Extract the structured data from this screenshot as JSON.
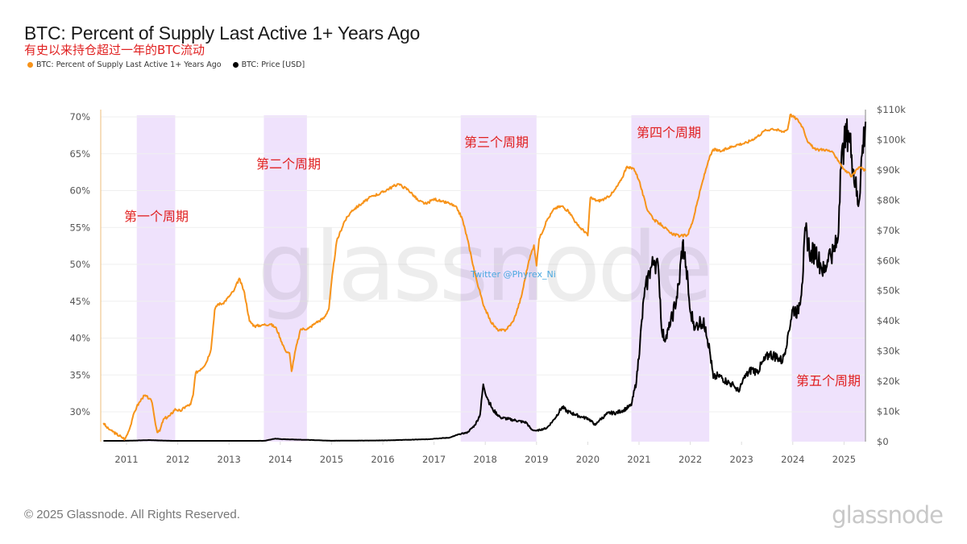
{
  "header": {
    "title": "BTC: Percent of Supply Last Active 1+ Years Ago",
    "subtitle": "有史以来持仓超过一年的BTC流动"
  },
  "footer": {
    "copyright": "© 2025 Glassnode. All Rights Reserved.",
    "logo_text": "glassnode"
  },
  "watermark": "glassnode",
  "credit": "Twitter @Phyrex_Ni",
  "colors": {
    "supply": "#f7931a",
    "price": "#000000",
    "band": "#efe2fc",
    "annotation": "#e02020",
    "credit": "#4aa8e0"
  },
  "chart_data": {
    "type": "line",
    "title": "BTC: Percent of Supply Last Active 1+ Years Ago",
    "xlabel": "",
    "ylabel_left": "",
    "ylabel_right": "",
    "x_range": [
      2010.55,
      2025.45
    ],
    "y_left_range": [
      25.6,
      70.5
    ],
    "y_right_range": [
      0,
      110
    ],
    "grid": true,
    "legend_position": "top-left",
    "x_ticks": [
      "2011",
      "2012",
      "2013",
      "2014",
      "2015",
      "2016",
      "2017",
      "2018",
      "2019",
      "2020",
      "2021",
      "2022",
      "2023",
      "2024",
      "2025"
    ],
    "y_left_ticks": [
      "30%",
      "35%",
      "40%",
      "45%",
      "50%",
      "55%",
      "60%",
      "65%",
      "70%"
    ],
    "y_left_tick_values": [
      30,
      35,
      40,
      45,
      50,
      55,
      60,
      65,
      70
    ],
    "y_right_ticks": [
      "$0",
      "$10k",
      "$20k",
      "$30k",
      "$40k",
      "$50k",
      "$60k",
      "$70k",
      "$80k",
      "$90k",
      "$100k",
      "$110k"
    ],
    "y_right_tick_values": [
      0,
      10,
      20,
      30,
      40,
      50,
      60,
      70,
      80,
      90,
      100,
      110
    ],
    "series": [
      {
        "name": "BTC: Percent of Supply Last Active 1+ Years Ago",
        "axis": "left",
        "unit": "%",
        "x": [
          2010.55,
          2010.62,
          2010.7,
          2010.8,
          2010.9,
          2010.97,
          2011.05,
          2011.12,
          2011.2,
          2011.3,
          2011.35,
          2011.45,
          2011.5,
          2011.55,
          2011.6,
          2011.65,
          2011.72,
          2011.85,
          2011.95,
          2012.05,
          2012.15,
          2012.25,
          2012.3,
          2012.35,
          2012.45,
          2012.55,
          2012.65,
          2012.72,
          2012.78,
          2012.88,
          2013.0,
          2013.1,
          2013.2,
          2013.3,
          2013.4,
          2013.5,
          2013.65,
          2013.8,
          2013.92,
          2014.0,
          2014.1,
          2014.18,
          2014.22,
          2014.3,
          2014.4,
          2014.55,
          2014.7,
          2014.85,
          2014.95,
          2015.0,
          2015.1,
          2015.25,
          2015.4,
          2015.6,
          2015.8,
          2015.95,
          2016.1,
          2016.3,
          2016.5,
          2016.7,
          2016.85,
          2017.0,
          2017.15,
          2017.3,
          2017.45,
          2017.55,
          2017.65,
          2017.8,
          2017.95,
          2018.1,
          2018.25,
          2018.4,
          2018.55,
          2018.7,
          2018.85,
          2018.95,
          2019.0,
          2019.05,
          2019.2,
          2019.35,
          2019.5,
          2019.65,
          2019.8,
          2019.95,
          2020.0,
          2020.05,
          2020.2,
          2020.35,
          2020.5,
          2020.65,
          2020.75,
          2020.9,
          2021.0,
          2021.15,
          2021.3,
          2021.45,
          2021.6,
          2021.8,
          2021.95,
          2022.05,
          2022.2,
          2022.35,
          2022.45,
          2022.6,
          2022.75,
          2022.9,
          2023.1,
          2023.3,
          2023.45,
          2023.6,
          2023.8,
          2023.9,
          2023.95,
          2024.1,
          2024.2,
          2024.3,
          2024.45,
          2024.6,
          2024.75,
          2024.85,
          2025.0,
          2025.15,
          2025.3,
          2025.42
        ],
        "y": [
          28.5,
          27.8,
          27.5,
          27.0,
          26.6,
          26.3,
          27.5,
          29.2,
          30.7,
          31.8,
          32.2,
          31.8,
          31.2,
          29.0,
          27.2,
          27.4,
          29.0,
          29.5,
          30.4,
          30.1,
          30.7,
          31.0,
          32.3,
          35.3,
          35.8,
          36.6,
          38.5,
          43.8,
          44.6,
          44.7,
          45.6,
          46.5,
          48.1,
          46.2,
          42.3,
          41.6,
          41.8,
          41.9,
          41.4,
          40.0,
          38.3,
          38.0,
          35.5,
          38.5,
          41.2,
          41.3,
          42.1,
          42.7,
          44.0,
          47.6,
          53.1,
          55.8,
          57.3,
          58.3,
          59.3,
          59.6,
          60.2,
          60.9,
          60.1,
          58.6,
          58.2,
          58.9,
          58.5,
          58.3,
          57.6,
          56.2,
          53.5,
          48.7,
          44.8,
          42.3,
          41.0,
          41.1,
          42.3,
          45.5,
          50.5,
          52.6,
          49.8,
          53.4,
          55.9,
          57.6,
          57.9,
          57.0,
          55.3,
          54.4,
          53.9,
          59.0,
          58.6,
          58.9,
          59.8,
          61.4,
          63.1,
          63.0,
          61.4,
          57.6,
          56.0,
          55.3,
          54.3,
          53.8,
          54.0,
          55.9,
          60.2,
          64.0,
          65.6,
          65.3,
          65.8,
          66.2,
          66.5,
          67.3,
          68.1,
          68.4,
          68.0,
          68.3,
          70.3,
          69.6,
          68.5,
          66.5,
          65.5,
          65.6,
          65.3,
          64.5,
          62.9,
          61.9,
          63.2,
          62.7
        ]
      },
      {
        "name": "BTC: Price [USD]",
        "axis": "right",
        "unit": "USD thousands",
        "x": [
          2010.55,
          2011.0,
          2011.45,
          2012.0,
          2013.0,
          2013.3,
          2013.7,
          2013.9,
          2014.05,
          2014.5,
          2015.0,
          2016.0,
          2016.9,
          2017.0,
          2017.3,
          2017.5,
          2017.65,
          2017.8,
          2017.9,
          2017.96,
          2018.05,
          2018.15,
          2018.3,
          2018.45,
          2018.6,
          2018.8,
          2018.9,
          2019.0,
          2019.2,
          2019.35,
          2019.5,
          2019.6,
          2019.75,
          2019.9,
          2020.0,
          2020.15,
          2020.22,
          2020.4,
          2020.55,
          2020.7,
          2020.85,
          2020.95,
          2021.02,
          2021.1,
          2021.2,
          2021.3,
          2021.38,
          2021.45,
          2021.52,
          2021.6,
          2021.7,
          2021.78,
          2021.85,
          2021.92,
          2022.0,
          2022.1,
          2022.2,
          2022.3,
          2022.38,
          2022.45,
          2022.55,
          2022.7,
          2022.85,
          2022.95,
          2023.05,
          2023.2,
          2023.3,
          2023.45,
          2023.55,
          2023.7,
          2023.8,
          2023.9,
          2024.0,
          2024.1,
          2024.18,
          2024.25,
          2024.35,
          2024.45,
          2024.55,
          2024.62,
          2024.7,
          2024.8,
          2024.88,
          2024.93,
          2025.0,
          2025.08,
          2025.15,
          2025.22,
          2025.28,
          2025.35,
          2025.42
        ],
        "y": [
          0.1,
          0.3,
          0.5,
          0.2,
          0.1,
          0.2,
          0.3,
          1.0,
          0.8,
          0.6,
          0.3,
          0.4,
          0.8,
          1.0,
          1.3,
          2.5,
          3.0,
          5.5,
          9.0,
          19.0,
          14.0,
          10.5,
          8.0,
          7.5,
          7.0,
          6.3,
          4.0,
          3.6,
          4.5,
          7.5,
          11.5,
          10.0,
          9.0,
          8.0,
          7.8,
          5.5,
          7.0,
          9.5,
          9.5,
          10.5,
          12.0,
          20.0,
          33.0,
          48.0,
          56.0,
          60.0,
          57.0,
          36.0,
          34.0,
          38.0,
          45.0,
          52.0,
          66.0,
          58.0,
          43.0,
          38.0,
          40.0,
          38.0,
          30.0,
          21.0,
          22.0,
          20.0,
          18.5,
          16.5,
          21.0,
          24.0,
          23.0,
          27.0,
          29.0,
          28.0,
          26.5,
          35.0,
          44.0,
          43.0,
          52.0,
          70.0,
          62.0,
          63.0,
          58.0,
          56.0,
          62.0,
          63.0,
          67.0,
          90.0,
          98.0,
          103.0,
          95.0,
          85.0,
          78.0,
          95.0,
          106.0
        ]
      }
    ],
    "shaded_periods": [
      {
        "label": "第一个周期",
        "start": 2011.2,
        "end": 2011.95
      },
      {
        "label": "第二个周期",
        "start": 2013.68,
        "end": 2014.52
      },
      {
        "label": "第三个周期",
        "start": 2017.52,
        "end": 2019.0
      },
      {
        "label": "第四个周期",
        "start": 2020.85,
        "end": 2022.37
      },
      {
        "label": "第五个周期",
        "start": 2023.98,
        "end": 2025.45
      }
    ],
    "legend": [
      {
        "label": "BTC: Percent of Supply Last Active 1+ Years Ago",
        "color": "#f7931a"
      },
      {
        "label": "BTC: Price [USD]",
        "color": "#000000"
      }
    ]
  }
}
